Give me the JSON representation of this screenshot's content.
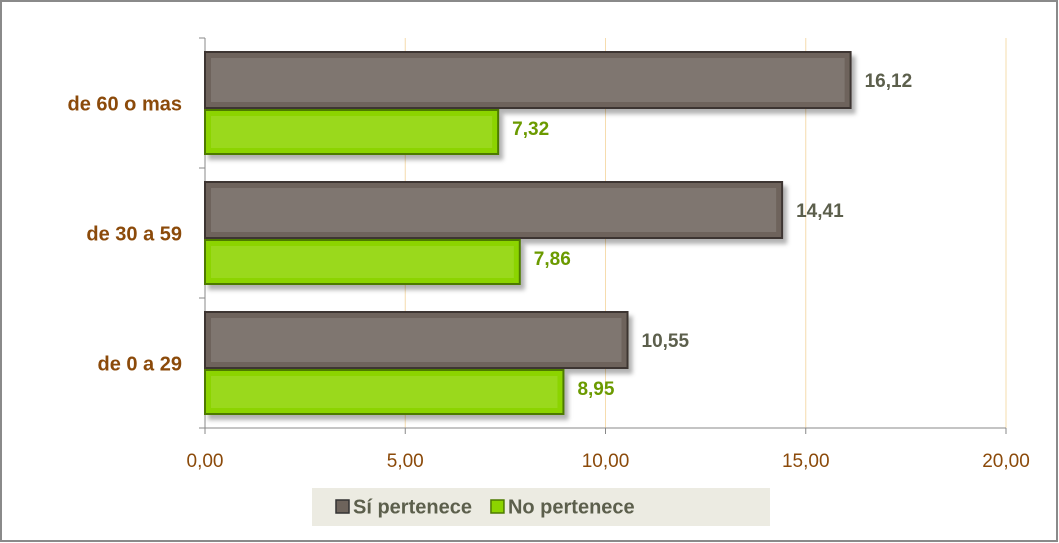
{
  "chart_data": {
    "type": "hbar",
    "categories": [
      "de 60 o mas",
      "de 30 a 59",
      "de 0 a 29"
    ],
    "series": [
      {
        "name": "Sí pertenece",
        "color": "#6e645c",
        "values": [
          16.12,
          14.41,
          10.55
        ],
        "value_labels": [
          "16,12",
          "14,41",
          "10,55"
        ]
      },
      {
        "name": "No pertenece",
        "color": "#8cd400",
        "values": [
          7.32,
          7.86,
          8.95
        ],
        "value_labels": [
          "7,32",
          "7,86",
          "8,95"
        ]
      }
    ],
    "xlim": [
      0,
      20
    ],
    "xticks": [
      {
        "value": 0,
        "label": "0,00"
      },
      {
        "value": 5,
        "label": "5,00"
      },
      {
        "value": 10,
        "label": "10,00"
      },
      {
        "value": 15,
        "label": "15,00"
      },
      {
        "value": 20,
        "label": "20,00"
      }
    ],
    "grid": true,
    "legend": "bottom"
  }
}
